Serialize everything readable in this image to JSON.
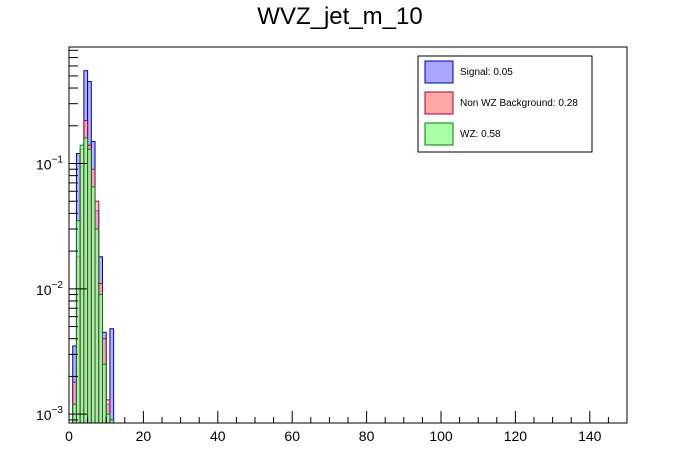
{
  "chart_data": {
    "type": "bar",
    "title": "WVZ_jet_m_10",
    "xlabel": "",
    "ylabel": "",
    "xlim": [
      0,
      150
    ],
    "ylim": [
      0.00085,
      0.85
    ],
    "yscale": "log",
    "xticks": [
      0,
      20,
      40,
      60,
      80,
      100,
      120,
      140
    ],
    "yticks": [
      {
        "base": "10",
        "exp": "−1",
        "value": 0.1
      },
      {
        "base": "10",
        "exp": "−2",
        "value": 0.01
      },
      {
        "base": "10",
        "exp": "−3",
        "value": 0.001
      }
    ],
    "bin_width": 1,
    "bin_starts": [
      1,
      2,
      3,
      4,
      5,
      6,
      7,
      8,
      9,
      10,
      11
    ],
    "series": [
      {
        "name": "Signal: 0.05",
        "fill": "#a8a8ff",
        "stroke": "#0000a0",
        "values": [
          0.0035,
          0.12,
          0.095,
          0.55,
          0.45,
          0.15,
          0.042,
          0.018,
          0.0045,
          0.0012,
          0.0048
        ]
      },
      {
        "name": "Non WZ Background: 0.28",
        "fill": "#ffa8a8",
        "stroke": "#a00040",
        "values": [
          0.0018,
          0.018,
          0.13,
          0.22,
          0.14,
          0.09,
          0.05,
          0.011,
          0.004,
          0.0013,
          0.0009
        ]
      },
      {
        "name": "WZ: 0.58",
        "fill": "#a8ffa8",
        "stroke": "#008000",
        "values": [
          0.0012,
          0.035,
          0.14,
          0.16,
          0.13,
          0.065,
          0.03,
          0.009,
          0.0025,
          0.001,
          0.0009
        ]
      }
    ],
    "legend_position": "top-right"
  }
}
